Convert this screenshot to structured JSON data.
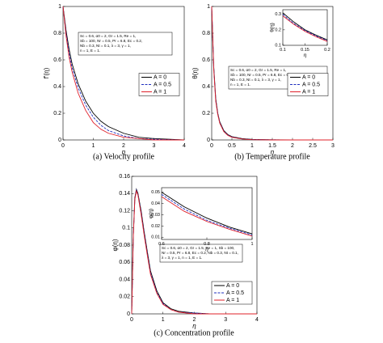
{
  "chart_data": [
    {
      "type": "line",
      "caption": "(a) Velocity profile",
      "xlabel": "η",
      "ylabel": "f'(η)",
      "xlim": [
        0,
        4
      ],
      "ylim": [
        0,
        1
      ],
      "xticks": [
        0,
        1,
        2,
        3,
        4
      ],
      "yticks": [
        0,
        0.2,
        0.4,
        0.6,
        0.8,
        1
      ],
      "legend_loc": "center right",
      "annotation": [
        "Sc = 0.6, α0 = 2, Gr = 1.5, Re = 1,",
        "Sb = 100, Nr = 0.5, Pr = 6.8, Ec = 0.2,",
        "Nb = 0.3, Nt = 0.1, λ = 3, γ = 1,",
        "n = 1, E = 1."
      ],
      "x": [
        0,
        0.1,
        0.2,
        0.3,
        0.5,
        0.75,
        1,
        1.25,
        1.5,
        2,
        2.5,
        3,
        4
      ],
      "series": [
        {
          "name": "A = 0",
          "color": "#000000",
          "style": "solid",
          "values": [
            1,
            0.82,
            0.68,
            0.57,
            0.42,
            0.29,
            0.2,
            0.14,
            0.1,
            0.05,
            0.02,
            0.01,
            0
          ]
        },
        {
          "name": "A = 0.5",
          "color": "#1f2fbf",
          "style": "dashed",
          "values": [
            1,
            0.8,
            0.65,
            0.54,
            0.39,
            0.26,
            0.17,
            0.11,
            0.07,
            0.03,
            0.01,
            0.005,
            0
          ]
        },
        {
          "name": "A = 1",
          "color": "#e0202a",
          "style": "solid",
          "values": [
            1,
            0.78,
            0.62,
            0.51,
            0.35,
            0.22,
            0.13,
            0.08,
            0.05,
            0.02,
            0.01,
            0,
            0
          ]
        }
      ]
    },
    {
      "type": "line",
      "caption": "(b) Temperature profile",
      "xlabel": "η",
      "ylabel": "θ(η)",
      "xlim": [
        0,
        3
      ],
      "ylim": [
        0,
        1
      ],
      "xticks": [
        0,
        0.5,
        1,
        1.5,
        2,
        2.5,
        3
      ],
      "yticks": [
        0,
        0.2,
        0.4,
        0.6,
        0.8,
        1
      ],
      "legend_loc": "center right",
      "annotation": [
        "Sc = 0.6, α0 = 2, Gr = 1.5, Re = 1,",
        "Sb = 100, Nr = 0.5, Pr = 6.8, Ec = 0.2,",
        "Nb = 0.3, Nt = 0.1, λ = 3, γ = 1,",
        "n = 1, E = 1."
      ],
      "x": [
        0,
        0.05,
        0.1,
        0.15,
        0.2,
        0.3,
        0.4,
        0.5,
        0.75,
        1,
        1.5,
        2,
        3
      ],
      "series": [
        {
          "name": "A = 0",
          "color": "#000000",
          "style": "solid",
          "values": [
            1,
            0.55,
            0.31,
            0.2,
            0.135,
            0.07,
            0.04,
            0.025,
            0.01,
            0.004,
            0.001,
            0,
            0
          ]
        },
        {
          "name": "A = 0.5",
          "color": "#1f2fbf",
          "style": "dashed",
          "values": [
            1,
            0.54,
            0.3,
            0.195,
            0.13,
            0.066,
            0.037,
            0.022,
            0.008,
            0.003,
            0.001,
            0,
            0
          ]
        },
        {
          "name": "A = 1",
          "color": "#e0202a",
          "style": "solid",
          "values": [
            1,
            0.53,
            0.29,
            0.19,
            0.125,
            0.062,
            0.034,
            0.02,
            0.007,
            0.002,
            0,
            0,
            0
          ]
        }
      ],
      "inset": {
        "xlabel": "η",
        "ylabel": "θ(η)",
        "xlim": [
          0.1,
          0.2
        ],
        "ylim": [
          0.1,
          0.33
        ],
        "xticks": [
          0.1,
          0.15,
          0.2
        ],
        "yticks": [
          0.1,
          0.2,
          0.3
        ],
        "x": [
          0.1,
          0.125,
          0.15,
          0.175,
          0.2
        ],
        "series": [
          {
            "color": "#000000",
            "style": "solid",
            "values": [
              0.31,
              0.25,
              0.2,
              0.165,
              0.135
            ]
          },
          {
            "color": "#1f2fbf",
            "style": "dashed",
            "values": [
              0.3,
              0.24,
              0.195,
              0.16,
              0.13
            ]
          },
          {
            "color": "#e0202a",
            "style": "solid",
            "values": [
              0.29,
              0.235,
              0.19,
              0.155,
              0.125
            ]
          }
        ]
      }
    },
    {
      "type": "line",
      "caption": "(c) Concentration profile",
      "xlabel": "η",
      "ylabel": "φ(η)",
      "xlim": [
        0,
        4
      ],
      "ylim": [
        0,
        0.16
      ],
      "xticks": [
        0,
        1,
        2,
        3,
        4
      ],
      "yticks": [
        0,
        0.02,
        0.04,
        0.06,
        0.08,
        0.1,
        0.12,
        0.14,
        0.16
      ],
      "legend_loc": "lower right",
      "annotation": [
        "Sc = 0.6, α0 = 2, Gr = 1.5, Re = 1, Sb = 100,",
        "Nr = 0.5, Pr = 6.8, Ec = 0.2, Nb = 0.3, Nt = 0.1,",
        "λ = 3, γ = 1, n = 1, E = 1."
      ],
      "x": [
        0,
        0.05,
        0.1,
        0.15,
        0.2,
        0.3,
        0.4,
        0.5,
        0.6,
        0.8,
        1,
        1.25,
        1.5,
        2,
        2.5,
        3,
        4
      ],
      "series": [
        {
          "name": "A = 0",
          "color": "#000000",
          "style": "solid",
          "values": [
            0,
            0.09,
            0.135,
            0.145,
            0.14,
            0.12,
            0.095,
            0.072,
            0.05,
            0.027,
            0.013,
            0.006,
            0.003,
            0.001,
            0,
            0,
            0
          ]
        },
        {
          "name": "A = 0.5",
          "color": "#1f2fbf",
          "style": "dashed",
          "values": [
            0,
            0.09,
            0.134,
            0.144,
            0.139,
            0.118,
            0.093,
            0.07,
            0.048,
            0.025,
            0.012,
            0.005,
            0.002,
            0.001,
            0,
            0,
            0
          ]
        },
        {
          "name": "A = 1",
          "color": "#e0202a",
          "style": "solid",
          "values": [
            0,
            0.089,
            0.133,
            0.143,
            0.138,
            0.116,
            0.091,
            0.068,
            0.046,
            0.024,
            0.011,
            0.005,
            0.002,
            0,
            0,
            0,
            0
          ]
        }
      ],
      "inset": {
        "xlabel": "η",
        "ylabel": "φ(η)",
        "xlim": [
          0.6,
          1
        ],
        "ylim": [
          0.008,
          0.054
        ],
        "xticks": [
          0.6,
          0.8,
          1
        ],
        "yticks": [
          0.01,
          0.02,
          0.03,
          0.04,
          0.05
        ],
        "x": [
          0.6,
          0.7,
          0.8,
          0.9,
          1
        ],
        "series": [
          {
            "color": "#000000",
            "style": "solid",
            "values": [
              0.05,
              0.037,
              0.027,
              0.019,
              0.013
            ]
          },
          {
            "color": "#1f2fbf",
            "style": "dashed",
            "values": [
              0.048,
              0.035,
              0.025,
              0.018,
              0.012
            ]
          },
          {
            "color": "#e0202a",
            "style": "solid",
            "values": [
              0.046,
              0.033,
              0.024,
              0.017,
              0.011
            ]
          }
        ]
      }
    }
  ]
}
